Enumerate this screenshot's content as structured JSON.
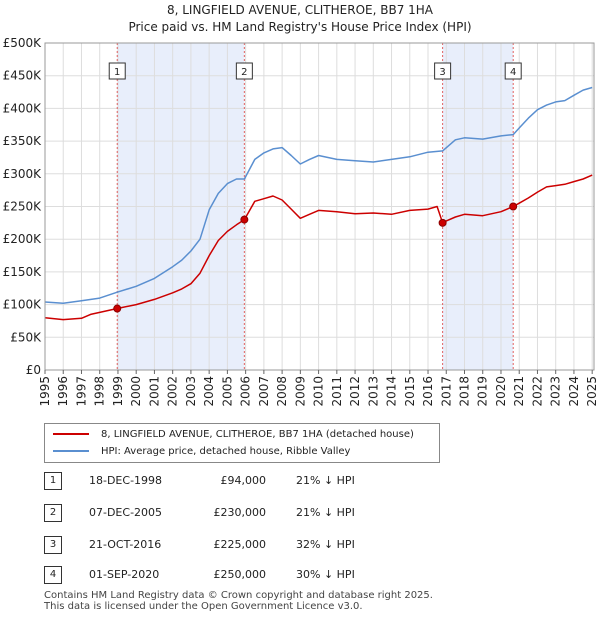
{
  "title_line1": "8, LINGFIELD AVENUE, CLITHEROE, BB7 1HA",
  "title_line2": "Price paid vs. HM Land Registry's House Price Index (HPI)",
  "chart_data": {
    "type": "line",
    "title": "8, LINGFIELD AVENUE, CLITHEROE, BB7 1HA — Price paid vs. HM Land Registry's House Price Index (HPI)",
    "xlabel": "",
    "ylabel": "",
    "xlim": [
      1995,
      2025.1
    ],
    "ylim": [
      0,
      500000
    ],
    "grid": true,
    "legend_position": "below",
    "x_ticks": [
      "1995",
      "1996",
      "1997",
      "1998",
      "1999",
      "2000",
      "2001",
      "2002",
      "2003",
      "2004",
      "2005",
      "2006",
      "2007",
      "2008",
      "2009",
      "2010",
      "2011",
      "2012",
      "2013",
      "2014",
      "2015",
      "2016",
      "2017",
      "2018",
      "2019",
      "2020",
      "2021",
      "2022",
      "2023",
      "2024",
      "2025"
    ],
    "y_ticks": [
      {
        "value": 0,
        "label": "£0"
      },
      {
        "value": 50000,
        "label": "£50K"
      },
      {
        "value": 100000,
        "label": "£100K"
      },
      {
        "value": 150000,
        "label": "£150K"
      },
      {
        "value": 200000,
        "label": "£200K"
      },
      {
        "value": 250000,
        "label": "£250K"
      },
      {
        "value": 300000,
        "label": "£300K"
      },
      {
        "value": 350000,
        "label": "£350K"
      },
      {
        "value": 400000,
        "label": "£400K"
      },
      {
        "value": 450000,
        "label": "£450K"
      },
      {
        "value": 500000,
        "label": "£500K"
      }
    ],
    "shaded_ranges": [
      [
        1998.96,
        2005.93
      ],
      [
        2016.8,
        2020.67
      ]
    ],
    "series": [
      {
        "name": "8, LINGFIELD AVENUE, CLITHEROE, BB7 1HA (detached house)",
        "color": "#cc0000",
        "x": [
          1995.0,
          1996.0,
          1997.0,
          1997.5,
          1998.0,
          1998.96,
          2000.0,
          2001.0,
          2002.0,
          2002.5,
          2003.0,
          2003.5,
          2004.0,
          2004.5,
          2005.0,
          2005.5,
          2005.93,
          2006.5,
          2007.0,
          2007.5,
          2008.0,
          2008.5,
          2009.0,
          2009.5,
          2010.0,
          2011.0,
          2012.0,
          2013.0,
          2014.0,
          2015.0,
          2016.0,
          2016.5,
          2016.8,
          2017.0,
          2017.5,
          2018.0,
          2019.0,
          2020.0,
          2020.67,
          2021.0,
          2021.5,
          2022.0,
          2022.5,
          2023.0,
          2023.5,
          2024.0,
          2024.5,
          2025.0
        ],
        "y": [
          80000,
          77000,
          79000,
          85000,
          88000,
          94000,
          100000,
          108000,
          118000,
          124000,
          132000,
          148000,
          175000,
          198000,
          212000,
          222000,
          230000,
          258000,
          262000,
          266000,
          260000,
          246000,
          232000,
          238000,
          244000,
          242000,
          239000,
          240000,
          238000,
          244000,
          246000,
          250000,
          225000,
          228000,
          234000,
          238000,
          236000,
          242000,
          250000,
          255000,
          263000,
          272000,
          280000,
          282000,
          284000,
          288000,
          292000,
          298000
        ]
      },
      {
        "name": "HPI: Average price, detached house, Ribble Valley",
        "color": "#5a8fd0",
        "x": [
          1995.0,
          1996.0,
          1997.0,
          1998.0,
          1998.96,
          2000.0,
          2001.0,
          2002.0,
          2002.5,
          2003.0,
          2003.5,
          2004.0,
          2004.5,
          2005.0,
          2005.5,
          2005.93,
          2006.5,
          2007.0,
          2007.5,
          2008.0,
          2008.5,
          2009.0,
          2009.5,
          2010.0,
          2011.0,
          2012.0,
          2013.0,
          2014.0,
          2015.0,
          2016.0,
          2016.8,
          2017.5,
          2018.0,
          2019.0,
          2020.0,
          2020.67,
          2021.0,
          2021.5,
          2022.0,
          2022.5,
          2023.0,
          2023.5,
          2024.0,
          2024.5,
          2025.0
        ],
        "y": [
          104000,
          102000,
          106000,
          110000,
          119000,
          128000,
          140000,
          158000,
          168000,
          182000,
          200000,
          245000,
          270000,
          285000,
          292000,
          292000,
          322000,
          332000,
          338000,
          340000,
          328000,
          315000,
          322000,
          328000,
          322000,
          320000,
          318000,
          322000,
          326000,
          333000,
          335000,
          352000,
          355000,
          353000,
          358000,
          360000,
          370000,
          385000,
          398000,
          405000,
          410000,
          412000,
          420000,
          428000,
          432000
        ]
      }
    ],
    "markers": [
      {
        "label": "1",
        "x": 1998.96,
        "y": 94000
      },
      {
        "label": "2",
        "x": 2005.93,
        "y": 230000
      },
      {
        "label": "3",
        "x": 2016.8,
        "y": 225000
      },
      {
        "label": "4",
        "x": 2020.67,
        "y": 250000
      }
    ]
  },
  "legend": {
    "items": [
      {
        "label": "8, LINGFIELD AVENUE, CLITHEROE, BB7 1HA (detached house)",
        "color": "#cc0000"
      },
      {
        "label": "HPI: Average price, detached house, Ribble Valley",
        "color": "#5a8fd0"
      }
    ]
  },
  "sales": [
    {
      "num": "1",
      "date": "18-DEC-1998",
      "price": "£94,000",
      "hpi": "21% ↓ HPI"
    },
    {
      "num": "2",
      "date": "07-DEC-2005",
      "price": "£230,000",
      "hpi": "21% ↓ HPI"
    },
    {
      "num": "3",
      "date": "21-OCT-2016",
      "price": "£225,000",
      "hpi": "32% ↓ HPI"
    },
    {
      "num": "4",
      "date": "01-SEP-2020",
      "price": "£250,000",
      "hpi": "30% ↓ HPI"
    }
  ],
  "footer": {
    "line1": "Contains HM Land Registry data © Crown copyright and database right 2025.",
    "line2": "This data is licensed under the Open Government Licence v3.0."
  }
}
